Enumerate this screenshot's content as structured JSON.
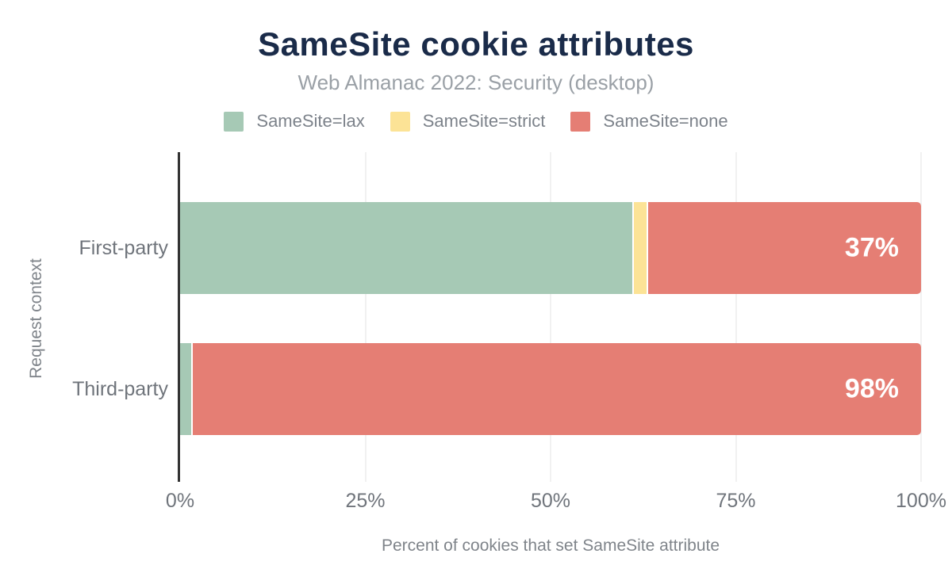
{
  "chart_data": {
    "type": "bar",
    "orientation": "horizontal",
    "stacked": true,
    "title": "SameSite cookie attributes",
    "subtitle": "Web Almanac 2022: Security (desktop)",
    "xlabel": "Percent of cookies that set SameSite attribute",
    "ylabel": "Request context",
    "categories": [
      "First-party",
      "Third-party"
    ],
    "series": [
      {
        "name": "SameSite=lax",
        "color": "#a6c9b5",
        "values": [
          61,
          1.5
        ]
      },
      {
        "name": "SameSite=strict",
        "color": "#fce396",
        "values": [
          2,
          0
        ]
      },
      {
        "name": "SameSite=none",
        "color": "#e57e74",
        "values": [
          37,
          98.5
        ]
      }
    ],
    "bar_labels": [
      "37%",
      "98%"
    ],
    "x_ticks": [
      {
        "label": "0%",
        "value": 0
      },
      {
        "label": "25%",
        "value": 25
      },
      {
        "label": "50%",
        "value": 50
      },
      {
        "label": "75%",
        "value": 75
      },
      {
        "label": "100%",
        "value": 100
      }
    ],
    "xlim": [
      0,
      100
    ],
    "grid": "vertical",
    "legend_position": "top",
    "colors": {
      "title": "#1a2b49",
      "subtitle": "#9aa0a6",
      "axis_text": "#6f747b",
      "axis_line": "#333333",
      "gridline": "#f1f1f1",
      "bar_label": "#ffffff",
      "background": "#ffffff"
    }
  }
}
